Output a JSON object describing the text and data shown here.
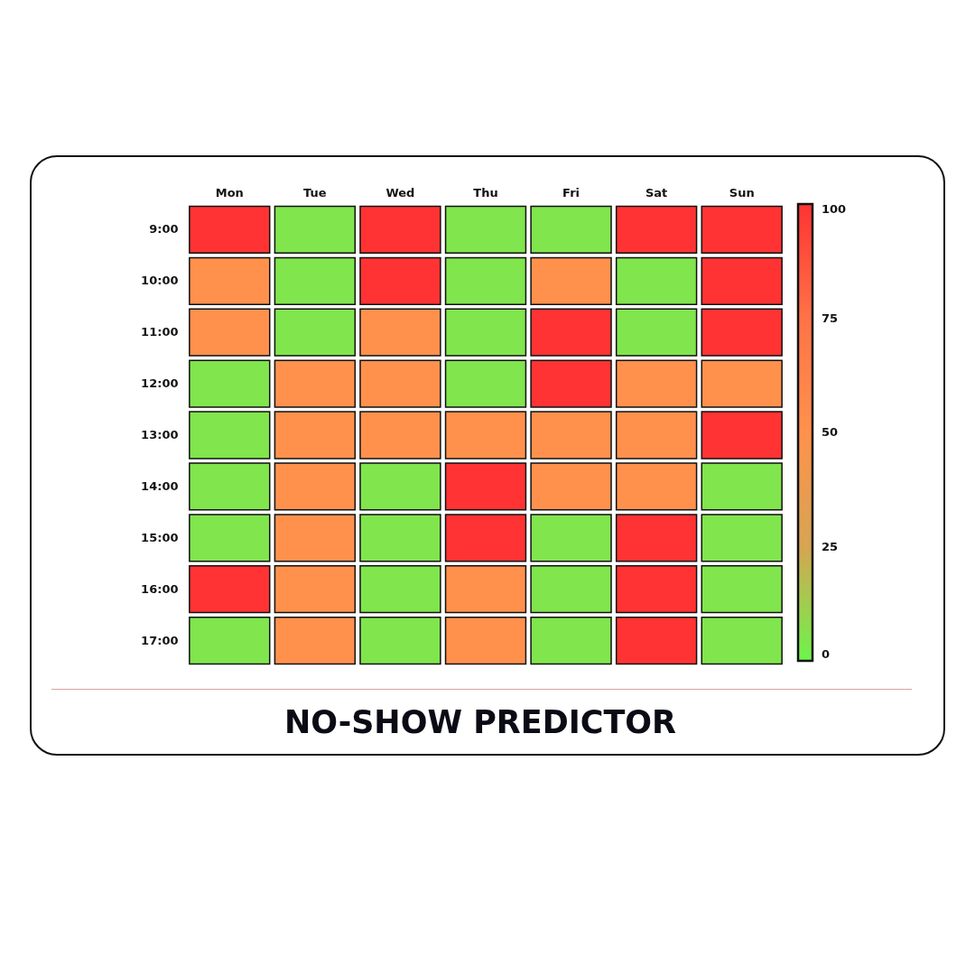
{
  "chart_data": {
    "type": "heatmap",
    "title": "NO-SHOW PREDICTOR",
    "categories": [
      "Mon",
      "Tue",
      "Wed",
      "Thu",
      "Fri",
      "Sat",
      "Sun"
    ],
    "y_categories": [
      "9:00",
      "10:00",
      "11:00",
      "12:00",
      "13:00",
      "14:00",
      "15:00",
      "16:00",
      "17:00"
    ],
    "cells": [
      [
        100,
        5,
        100,
        5,
        5,
        100,
        100
      ],
      [
        50,
        5,
        100,
        5,
        50,
        5,
        100
      ],
      [
        50,
        5,
        50,
        5,
        100,
        5,
        100
      ],
      [
        5,
        50,
        50,
        5,
        100,
        50,
        50
      ],
      [
        5,
        50,
        50,
        50,
        50,
        50,
        100
      ],
      [
        5,
        50,
        5,
        100,
        50,
        50,
        5
      ],
      [
        5,
        50,
        5,
        100,
        5,
        100,
        5
      ],
      [
        100,
        50,
        5,
        50,
        5,
        100,
        5
      ],
      [
        5,
        50,
        5,
        50,
        5,
        100,
        5
      ]
    ],
    "clim": [
      0,
      100
    ],
    "cticks": [
      0,
      25,
      50,
      75,
      100
    ]
  }
}
